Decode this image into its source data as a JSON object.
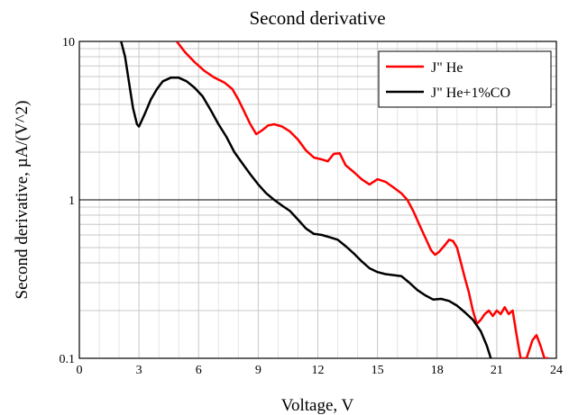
{
  "chart_data": {
    "type": "line",
    "title": "Second derivative",
    "xlabel": "Voltage, V",
    "ylabel": "Second derivative, µA/(V^2)",
    "xlim": [
      0,
      24
    ],
    "ylim": [
      0.1,
      10
    ],
    "yscale": "log",
    "grid": true,
    "legend_position": "top-right",
    "x_ticks": [
      "0",
      "3",
      "6",
      "9",
      "12",
      "15",
      "18",
      "21",
      "24"
    ],
    "y_ticks": [
      "0.1",
      "1",
      "10"
    ],
    "series": [
      {
        "name": "J\" He",
        "color": "#ff0000",
        "points": [
          [
            4.9,
            10.0
          ],
          [
            5.3,
            8.6
          ],
          [
            5.8,
            7.4
          ],
          [
            6.3,
            6.5
          ],
          [
            6.8,
            5.9
          ],
          [
            7.3,
            5.5
          ],
          [
            7.7,
            5.0
          ],
          [
            8.0,
            4.3
          ],
          [
            8.3,
            3.6
          ],
          [
            8.6,
            3.0
          ],
          [
            8.9,
            2.6
          ],
          [
            9.2,
            2.75
          ],
          [
            9.5,
            2.95
          ],
          [
            9.8,
            3.0
          ],
          [
            10.2,
            2.9
          ],
          [
            10.6,
            2.7
          ],
          [
            11.0,
            2.4
          ],
          [
            11.4,
            2.05
          ],
          [
            11.8,
            1.85
          ],
          [
            12.2,
            1.8
          ],
          [
            12.5,
            1.75
          ],
          [
            12.8,
            1.95
          ],
          [
            13.1,
            1.97
          ],
          [
            13.4,
            1.65
          ],
          [
            13.8,
            1.5
          ],
          [
            14.2,
            1.35
          ],
          [
            14.6,
            1.25
          ],
          [
            15.0,
            1.35
          ],
          [
            15.4,
            1.3
          ],
          [
            15.8,
            1.2
          ],
          [
            16.2,
            1.1
          ],
          [
            16.5,
            1.0
          ],
          [
            16.8,
            0.85
          ],
          [
            17.1,
            0.7
          ],
          [
            17.4,
            0.58
          ],
          [
            17.7,
            0.48
          ],
          [
            17.9,
            0.45
          ],
          [
            18.1,
            0.47
          ],
          [
            18.4,
            0.52
          ],
          [
            18.6,
            0.56
          ],
          [
            18.8,
            0.55
          ],
          [
            19.0,
            0.5
          ],
          [
            19.2,
            0.4
          ],
          [
            19.4,
            0.32
          ],
          [
            19.6,
            0.26
          ],
          [
            19.8,
            0.2
          ],
          [
            20.0,
            0.165
          ],
          [
            20.2,
            0.175
          ],
          [
            20.4,
            0.19
          ],
          [
            20.6,
            0.2
          ],
          [
            20.8,
            0.185
          ],
          [
            21.0,
            0.2
          ],
          [
            21.2,
            0.19
          ],
          [
            21.4,
            0.21
          ],
          [
            21.6,
            0.19
          ],
          [
            21.8,
            0.2
          ],
          [
            22.0,
            0.14
          ],
          [
            22.2,
            0.1
          ],
          [
            22.5,
            0.1
          ],
          [
            22.8,
            0.13
          ],
          [
            23.0,
            0.14
          ],
          [
            23.2,
            0.12
          ],
          [
            23.4,
            0.1
          ],
          [
            23.6,
            0.1
          ]
        ]
      },
      {
        "name": "J\" He+1%CO",
        "color": "#000000",
        "points": [
          [
            2.1,
            10.0
          ],
          [
            2.3,
            8.0
          ],
          [
            2.5,
            5.5
          ],
          [
            2.7,
            3.8
          ],
          [
            2.9,
            3.0
          ],
          [
            3.0,
            2.9
          ],
          [
            3.3,
            3.5
          ],
          [
            3.6,
            4.3
          ],
          [
            3.9,
            5.0
          ],
          [
            4.2,
            5.6
          ],
          [
            4.6,
            5.9
          ],
          [
            5.0,
            5.9
          ],
          [
            5.4,
            5.6
          ],
          [
            5.8,
            5.1
          ],
          [
            6.2,
            4.5
          ],
          [
            6.6,
            3.7
          ],
          [
            7.0,
            3.0
          ],
          [
            7.4,
            2.5
          ],
          [
            7.8,
            2.0
          ],
          [
            8.2,
            1.7
          ],
          [
            8.6,
            1.45
          ],
          [
            9.0,
            1.25
          ],
          [
            9.4,
            1.1
          ],
          [
            9.8,
            1.0
          ],
          [
            10.2,
            0.92
          ],
          [
            10.6,
            0.85
          ],
          [
            11.0,
            0.75
          ],
          [
            11.4,
            0.66
          ],
          [
            11.8,
            0.61
          ],
          [
            12.2,
            0.6
          ],
          [
            12.6,
            0.58
          ],
          [
            13.0,
            0.56
          ],
          [
            13.4,
            0.51
          ],
          [
            13.8,
            0.46
          ],
          [
            14.2,
            0.41
          ],
          [
            14.6,
            0.37
          ],
          [
            15.0,
            0.35
          ],
          [
            15.4,
            0.34
          ],
          [
            15.8,
            0.335
          ],
          [
            16.2,
            0.33
          ],
          [
            16.6,
            0.3
          ],
          [
            17.0,
            0.27
          ],
          [
            17.4,
            0.25
          ],
          [
            17.8,
            0.235
          ],
          [
            18.2,
            0.237
          ],
          [
            18.6,
            0.23
          ],
          [
            19.0,
            0.215
          ],
          [
            19.4,
            0.195
          ],
          [
            19.8,
            0.175
          ],
          [
            20.2,
            0.148
          ],
          [
            20.5,
            0.12
          ],
          [
            20.7,
            0.1
          ]
        ]
      }
    ]
  }
}
